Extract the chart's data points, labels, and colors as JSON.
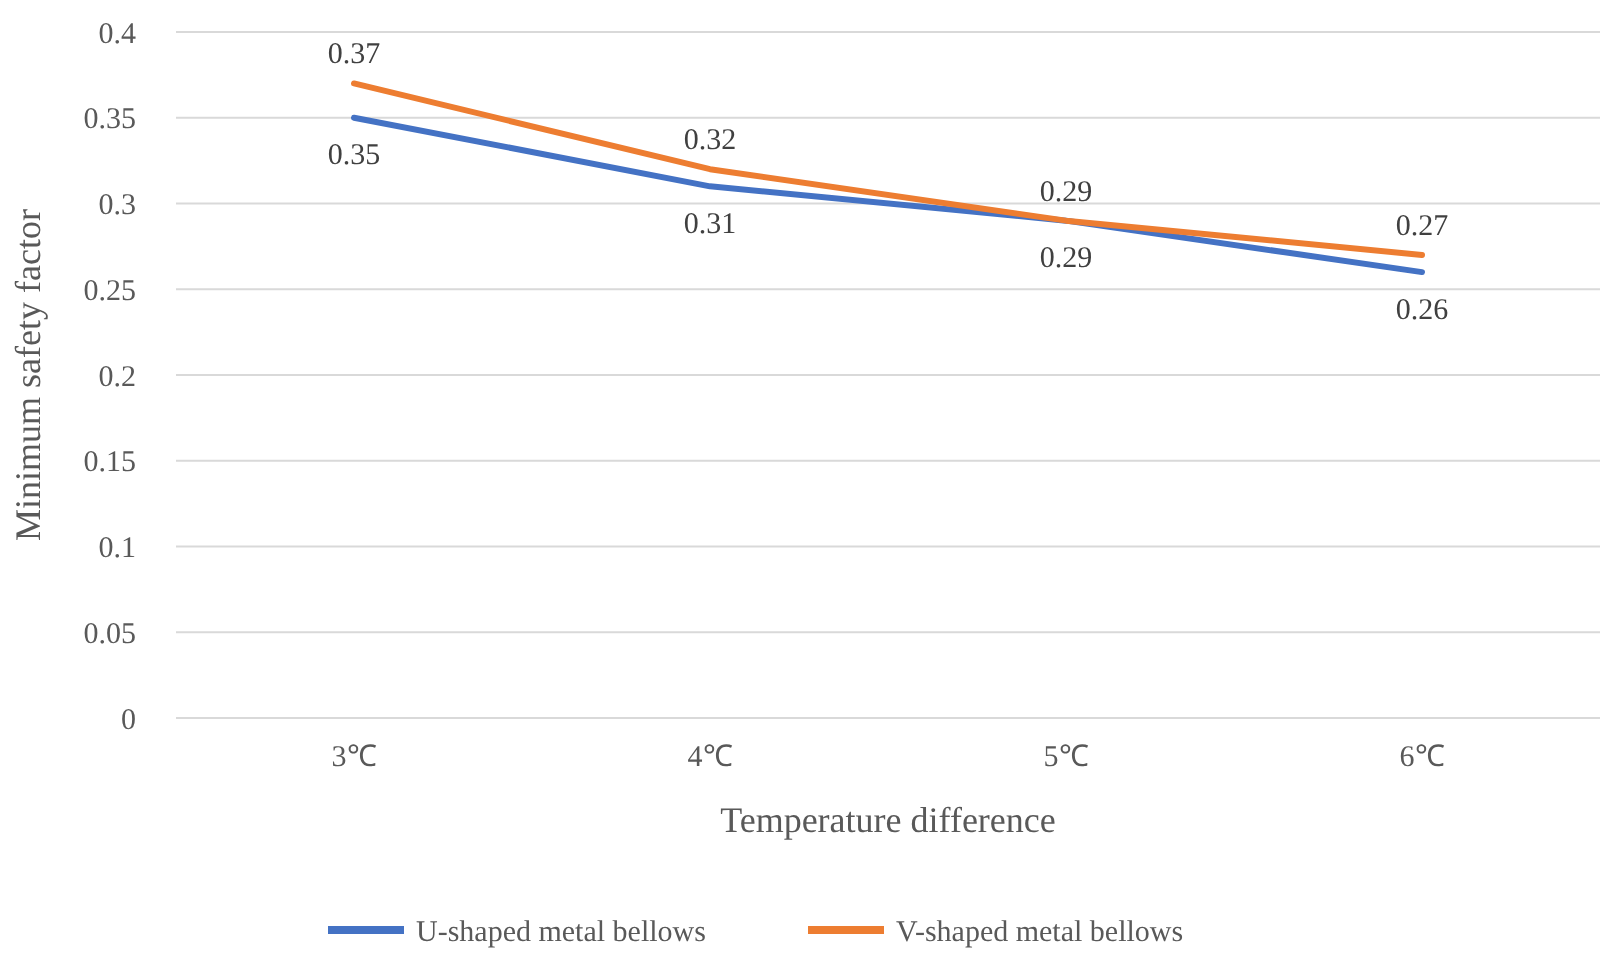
{
  "chart_data": {
    "type": "line",
    "xlabel": "Temperature difference",
    "ylabel": "Minimum safety factor",
    "categories": [
      "3℃",
      "4℃",
      "5℃",
      "6℃"
    ],
    "series": [
      {
        "name": "U-shaped metal bellows",
        "color": "#4472c4",
        "values": [
          0.35,
          0.31,
          0.29,
          0.26
        ]
      },
      {
        "name": "V-shaped metal bellows",
        "color": "#ed7d31",
        "values": [
          0.37,
          0.32,
          0.29,
          0.27
        ]
      }
    ],
    "ylim": [
      0,
      0.4
    ],
    "yticks": [
      0,
      0.05,
      0.1,
      0.15,
      0.2,
      0.25,
      0.3,
      0.35,
      0.4
    ],
    "grid": "y",
    "legend": "bottom",
    "data_labels": true,
    "marker": "none",
    "line_style": "solid"
  }
}
